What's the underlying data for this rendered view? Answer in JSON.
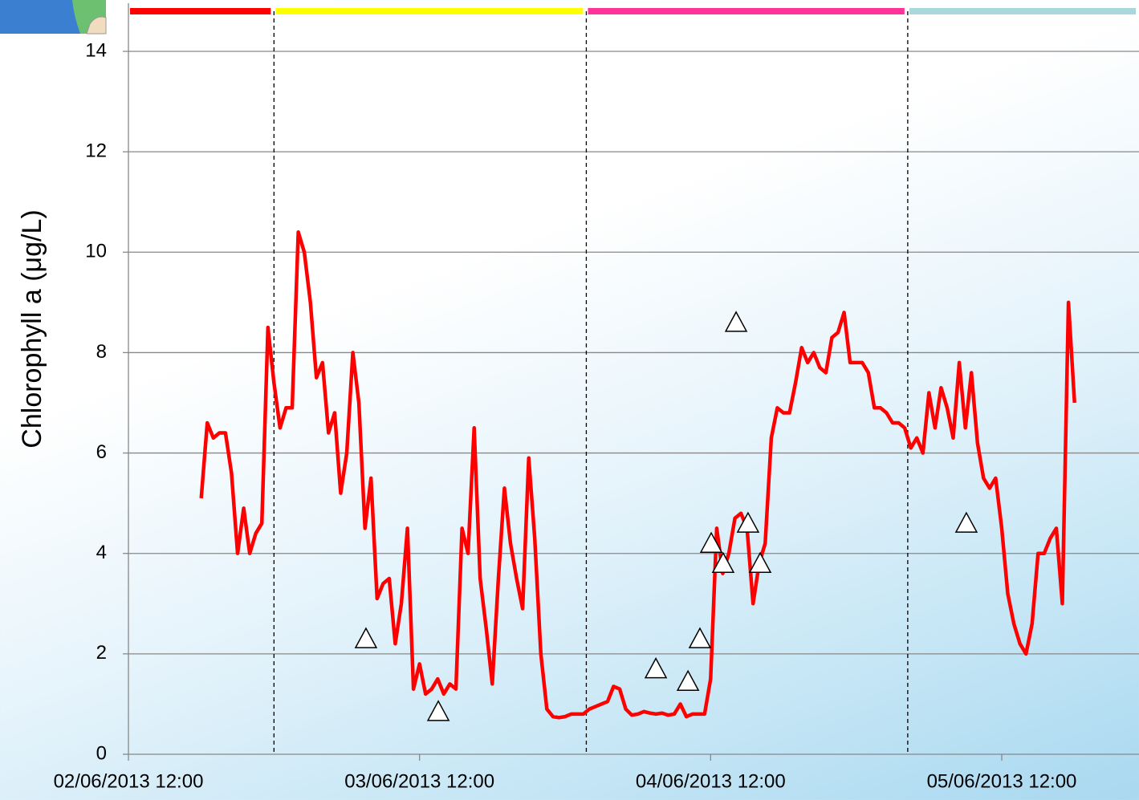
{
  "chart_data": {
    "type": "line",
    "y_label": "Chlorophyll a (μg/L)",
    "xlim": [
      "02/06/2013 12:00",
      "05/06/2013 23:19"
    ],
    "xticks": [
      "02/06/2013 12:00",
      "03/06/2013 12:00",
      "04/06/2013 12:00",
      "05/06/2013 12:00"
    ],
    "ylim": [
      0,
      14
    ],
    "yticks": [
      0,
      2,
      4,
      6,
      8,
      10,
      12,
      14
    ],
    "grid": true,
    "periods": [
      {
        "start": "02/06/2013 12:00",
        "end": "03/06/2013 00:00",
        "color": "#ff0000"
      },
      {
        "start": "03/06/2013 00:00",
        "end": "04/06/2013 01:45",
        "color": "#ffff00"
      },
      {
        "start": "04/06/2013 01:45",
        "end": "05/06/2013 04:15",
        "color": "#ff3399"
      },
      {
        "start": "05/06/2013 04:15",
        "end": "05/06/2013 23:19",
        "color": "#a8d8dc"
      }
    ],
    "x": [
      "02/06/2013 18:00",
      "02/06/2013 18:30",
      "02/06/2013 19:00",
      "02/06/2013 19:30",
      "02/06/2013 20:00",
      "02/06/2013 20:30",
      "02/06/2013 21:00",
      "02/06/2013 21:30",
      "02/06/2013 22:00",
      "02/06/2013 22:30",
      "02/06/2013 23:00",
      "02/06/2013 23:30",
      "03/06/2013 00:00",
      "03/06/2013 00:30",
      "03/06/2013 01:00",
      "03/06/2013 01:30",
      "03/06/2013 02:00",
      "03/06/2013 02:30",
      "03/06/2013 03:00",
      "03/06/2013 03:30",
      "03/06/2013 04:00",
      "03/06/2013 04:30",
      "03/06/2013 05:00",
      "03/06/2013 05:30",
      "03/06/2013 06:00",
      "03/06/2013 06:30",
      "03/06/2013 07:00",
      "03/06/2013 07:30",
      "03/06/2013 08:00",
      "03/06/2013 08:30",
      "03/06/2013 09:00",
      "03/06/2013 09:30",
      "03/06/2013 10:00",
      "03/06/2013 10:30",
      "03/06/2013 11:00",
      "03/06/2013 11:30",
      "03/06/2013 12:00",
      "03/06/2013 12:30",
      "03/06/2013 13:00",
      "03/06/2013 13:30",
      "03/06/2013 14:00",
      "03/06/2013 14:30",
      "03/06/2013 15:00",
      "03/06/2013 15:30",
      "03/06/2013 16:00",
      "03/06/2013 16:30",
      "03/06/2013 17:00",
      "03/06/2013 17:30",
      "03/06/2013 18:00",
      "03/06/2013 18:30",
      "03/06/2013 19:00",
      "03/06/2013 19:30",
      "03/06/2013 20:00",
      "03/06/2013 20:30",
      "03/06/2013 21:00",
      "03/06/2013 21:30",
      "03/06/2013 22:00",
      "03/06/2013 22:30",
      "03/06/2013 23:00",
      "03/06/2013 23:30",
      "04/06/2013 00:00",
      "04/06/2013 00:30",
      "04/06/2013 01:00",
      "04/06/2013 01:30",
      "04/06/2013 02:00",
      "04/06/2013 02:30",
      "04/06/2013 03:00",
      "04/06/2013 03:30",
      "04/06/2013 04:00",
      "04/06/2013 04:30",
      "04/06/2013 05:00",
      "04/06/2013 05:30",
      "04/06/2013 06:00",
      "04/06/2013 06:30",
      "04/06/2013 07:00",
      "04/06/2013 07:30",
      "04/06/2013 08:00",
      "04/06/2013 08:30",
      "04/06/2013 09:00",
      "04/06/2013 09:30",
      "04/06/2013 10:00",
      "04/06/2013 10:30",
      "04/06/2013 11:00",
      "04/06/2013 11:30",
      "04/06/2013 12:00",
      "04/06/2013 12:30",
      "04/06/2013 13:00",
      "04/06/2013 13:30",
      "04/06/2013 14:00",
      "04/06/2013 14:30",
      "04/06/2013 15:00",
      "04/06/2013 15:30",
      "04/06/2013 16:00",
      "04/06/2013 16:30",
      "04/06/2013 17:00",
      "04/06/2013 17:30",
      "04/06/2013 18:00",
      "04/06/2013 18:30",
      "04/06/2013 19:00",
      "04/06/2013 19:30",
      "04/06/2013 20:00",
      "04/06/2013 20:30",
      "04/06/2013 21:00",
      "04/06/2013 21:30",
      "04/06/2013 22:00",
      "04/06/2013 22:30",
      "04/06/2013 23:00",
      "04/06/2013 23:30",
      "05/06/2013 00:00",
      "05/06/2013 00:30",
      "05/06/2013 01:00",
      "05/06/2013 01:30",
      "05/06/2013 02:00",
      "05/06/2013 02:30",
      "05/06/2013 03:00",
      "05/06/2013 03:30",
      "05/06/2013 04:00",
      "05/06/2013 04:30",
      "05/06/2013 05:00",
      "05/06/2013 05:30",
      "05/06/2013 06:00",
      "05/06/2013 06:30",
      "05/06/2013 07:00",
      "05/06/2013 07:30",
      "05/06/2013 08:00",
      "05/06/2013 08:30",
      "05/06/2013 09:00",
      "05/06/2013 09:30",
      "05/06/2013 10:00",
      "05/06/2013 10:30",
      "05/06/2013 11:00",
      "05/06/2013 11:30",
      "05/06/2013 12:00",
      "05/06/2013 12:30",
      "05/06/2013 13:00",
      "05/06/2013 13:30",
      "05/06/2013 14:00",
      "05/06/2013 14:30",
      "05/06/2013 15:00",
      "05/06/2013 15:30",
      "05/06/2013 16:00",
      "05/06/2013 16:30",
      "05/06/2013 17:00",
      "05/06/2013 17:30",
      "05/06/2013 18:00"
    ],
    "series": [
      {
        "color": "#ff0000",
        "values": [
          5.1,
          6.6,
          6.3,
          6.4,
          6.4,
          5.6,
          4.0,
          4.9,
          4.0,
          4.4,
          4.6,
          8.5,
          7.4,
          6.5,
          6.9,
          6.9,
          10.4,
          10.0,
          9.0,
          7.5,
          7.8,
          6.4,
          6.8,
          5.2,
          6.0,
          8.0,
          7.0,
          4.5,
          5.5,
          3.1,
          3.4,
          3.5,
          2.2,
          3.0,
          4.5,
          1.3,
          1.8,
          1.2,
          1.3,
          1.5,
          1.2,
          1.4,
          1.3,
          4.5,
          4.0,
          6.5,
          3.5,
          2.5,
          1.4,
          3.5,
          5.3,
          4.2,
          3.5,
          2.9,
          5.9,
          4.3,
          2.0,
          0.9,
          0.75,
          0.73,
          0.75,
          0.8,
          0.8,
          0.8,
          0.9,
          0.95,
          1.0,
          1.05,
          1.35,
          1.3,
          0.9,
          0.78,
          0.8,
          0.85,
          0.82,
          0.8,
          0.82,
          0.78,
          0.8,
          1.0,
          0.75,
          0.8,
          0.8,
          0.8,
          1.5,
          4.5,
          3.6,
          4.0,
          4.7,
          4.8,
          4.5,
          3.0,
          3.8,
          4.2,
          6.3,
          6.9,
          6.8,
          6.8,
          7.4,
          8.1,
          7.8,
          8.0,
          7.7,
          7.6,
          8.3,
          8.4,
          8.8,
          7.8,
          7.8,
          7.8,
          7.6,
          6.9,
          6.9,
          6.8,
          6.6,
          6.6,
          6.5,
          6.1,
          6.3,
          6.0,
          7.2,
          6.5,
          7.3,
          6.9,
          6.3,
          7.8,
          6.5,
          7.6,
          6.2,
          5.5,
          5.3,
          5.5,
          4.5,
          3.2,
          2.6,
          2.2,
          2.0,
          2.6,
          4.0,
          4.0,
          4.3,
          4.5,
          3.0,
          9.0,
          7.0
        ]
      }
    ],
    "markers": {
      "x": [
        "03/06/2013 07:35",
        "03/06/2013 13:33",
        "04/06/2013 07:29",
        "04/06/2013 10:08",
        "04/06/2013 11:07",
        "04/06/2013 12:03",
        "04/06/2013 13:02",
        "04/06/2013 14:06",
        "04/06/2013 15:05",
        "04/06/2013 16:05",
        "05/06/2013 09:05"
      ],
      "values": [
        2.3,
        0.85,
        1.7,
        1.45,
        2.3,
        4.2,
        3.8,
        8.6,
        4.6,
        3.8,
        4.6
      ]
    }
  }
}
